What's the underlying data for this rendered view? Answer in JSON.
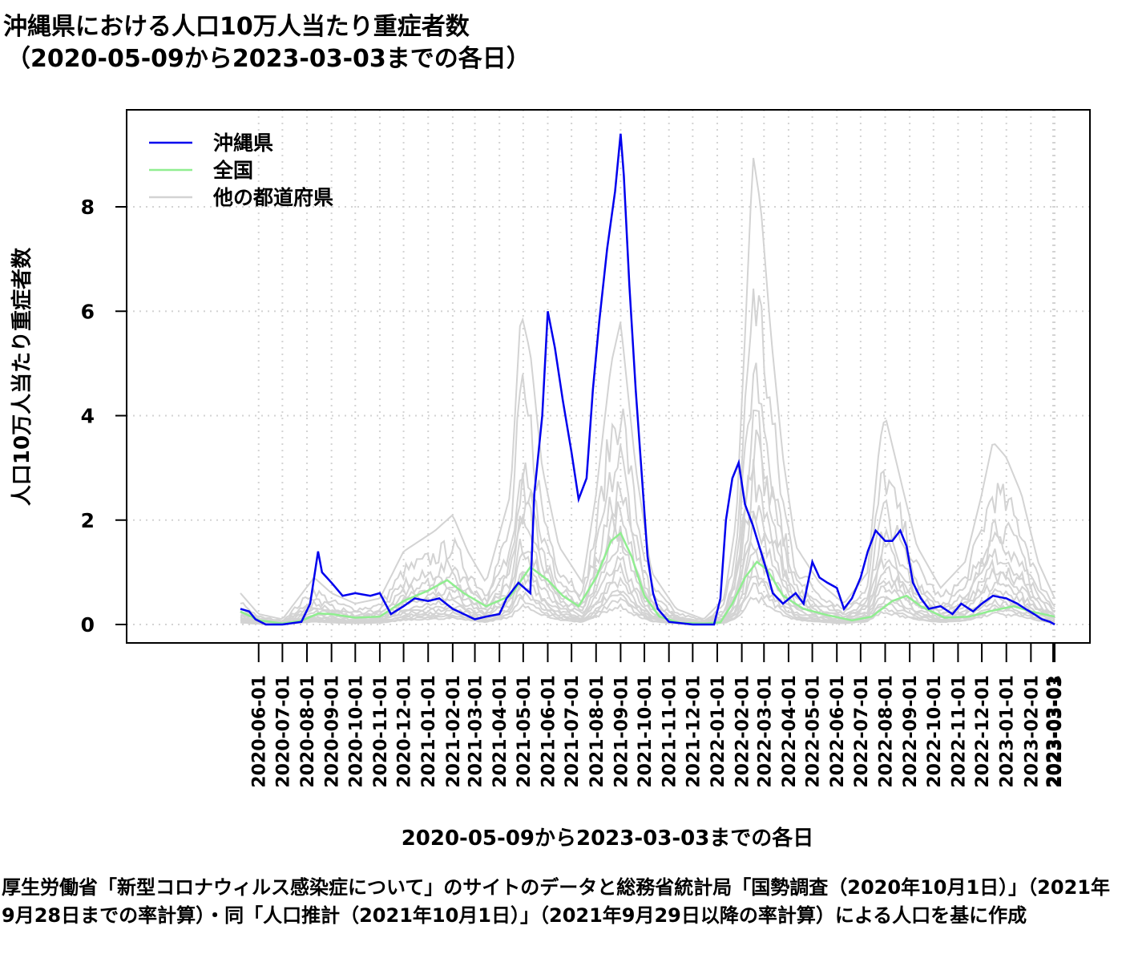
{
  "title": {
    "line1": "沖縄県における人口10万人当たり重症者数",
    "line2": "（2020-05-09から2023-03-03までの各日）"
  },
  "caption": "厚生労働省「新型コロナウィルス感染症について」のサイトのデータと総務省統計局「国勢調査（2020年10月1日）」（2021年9月28日までの率計算）・同「人口推計（2021年10月1日）」（2021年9月29日以降の率計算）による人口を基に作成",
  "colors": {
    "okinawa": "#0000ee",
    "national": "#90ee90",
    "others": "#d3d3d3",
    "grid": "#d3d3d3",
    "axis": "#000000"
  },
  "chart_data": {
    "type": "line",
    "title": "沖縄県における人口10万人当たり重症者数（2020-05-09から2023-03-03までの各日）",
    "xlabel": "2020-05-09から2023-03-03までの各日",
    "ylabel": "人口10万人当たり重症者数",
    "x_range": [
      "2020-05-09",
      "2023-03-03"
    ],
    "ylim": [
      0,
      9.5
    ],
    "y_ticks": [
      0,
      2,
      4,
      6,
      8
    ],
    "x_ticks": [
      "2020-06-01",
      "2020-07-01",
      "2020-08-01",
      "2020-09-01",
      "2020-10-01",
      "2020-11-01",
      "2020-12-01",
      "2021-01-01",
      "2021-02-01",
      "2021-03-01",
      "2021-04-01",
      "2021-05-01",
      "2021-06-01",
      "2021-07-01",
      "2021-08-01",
      "2021-09-01",
      "2021-10-01",
      "2021-11-01",
      "2021-12-01",
      "2022-01-01",
      "2022-02-01",
      "2022-03-01",
      "2022-04-01",
      "2022-05-01",
      "2022-06-01",
      "2022-07-01",
      "2022-08-01",
      "2022-09-01",
      "2022-10-01",
      "2022-11-01",
      "2022-12-01",
      "2023-01-01",
      "2023-02-01",
      "2023-03-01",
      "2023-03-03"
    ],
    "grid": "dotted",
    "legend_position": "top-left",
    "legend": [
      "沖縄県",
      "全国",
      "他の都道府県"
    ],
    "series": [
      {
        "name": "沖縄県",
        "color": "#0000ee",
        "points": [
          [
            "2020-05-09",
            0.3
          ],
          [
            "2020-05-20",
            0.25
          ],
          [
            "2020-05-28",
            0.1
          ],
          [
            "2020-06-10",
            0.0
          ],
          [
            "2020-07-01",
            0.0
          ],
          [
            "2020-07-25",
            0.05
          ],
          [
            "2020-08-05",
            0.4
          ],
          [
            "2020-08-15",
            1.4
          ],
          [
            "2020-08-20",
            1.0
          ],
          [
            "2020-09-01",
            0.8
          ],
          [
            "2020-09-15",
            0.55
          ],
          [
            "2020-10-01",
            0.6
          ],
          [
            "2020-10-20",
            0.55
          ],
          [
            "2020-11-01",
            0.6
          ],
          [
            "2020-11-15",
            0.2
          ],
          [
            "2020-12-01",
            0.35
          ],
          [
            "2020-12-15",
            0.5
          ],
          [
            "2021-01-01",
            0.45
          ],
          [
            "2021-01-15",
            0.5
          ],
          [
            "2021-02-01",
            0.3
          ],
          [
            "2021-02-15",
            0.2
          ],
          [
            "2021-03-01",
            0.1
          ],
          [
            "2021-03-15",
            0.15
          ],
          [
            "2021-04-01",
            0.2
          ],
          [
            "2021-04-10",
            0.5
          ],
          [
            "2021-04-25",
            0.8
          ],
          [
            "2021-05-10",
            0.6
          ],
          [
            "2021-05-15",
            2.5
          ],
          [
            "2021-05-25",
            4.0
          ],
          [
            "2021-06-01",
            6.0
          ],
          [
            "2021-06-10",
            5.3
          ],
          [
            "2021-06-20",
            4.3
          ],
          [
            "2021-07-01",
            3.3
          ],
          [
            "2021-07-10",
            2.4
          ],
          [
            "2021-07-20",
            2.8
          ],
          [
            "2021-07-28",
            4.5
          ],
          [
            "2021-08-05",
            5.8
          ],
          [
            "2021-08-15",
            7.2
          ],
          [
            "2021-08-25",
            8.3
          ],
          [
            "2021-09-01",
            9.4
          ],
          [
            "2021-09-05",
            8.6
          ],
          [
            "2021-09-12",
            6.5
          ],
          [
            "2021-09-20",
            4.5
          ],
          [
            "2021-09-28",
            2.8
          ],
          [
            "2021-10-05",
            1.3
          ],
          [
            "2021-10-12",
            0.6
          ],
          [
            "2021-10-18",
            0.3
          ],
          [
            "2021-11-01",
            0.05
          ],
          [
            "2021-12-01",
            0.0
          ],
          [
            "2021-12-28",
            0.0
          ],
          [
            "2022-01-05",
            0.5
          ],
          [
            "2022-01-12",
            2.0
          ],
          [
            "2022-01-20",
            2.8
          ],
          [
            "2022-01-28",
            3.1
          ],
          [
            "2022-02-05",
            2.3
          ],
          [
            "2022-02-15",
            1.9
          ],
          [
            "2022-02-25",
            1.4
          ],
          [
            "2022-03-05",
            1.0
          ],
          [
            "2022-03-12",
            0.6
          ],
          [
            "2022-03-25",
            0.4
          ],
          [
            "2022-04-10",
            0.6
          ],
          [
            "2022-04-20",
            0.4
          ],
          [
            "2022-05-01",
            1.2
          ],
          [
            "2022-05-10",
            0.9
          ],
          [
            "2022-05-20",
            0.8
          ],
          [
            "2022-06-01",
            0.7
          ],
          [
            "2022-06-10",
            0.3
          ],
          [
            "2022-06-20",
            0.5
          ],
          [
            "2022-07-01",
            0.9
          ],
          [
            "2022-07-10",
            1.4
          ],
          [
            "2022-07-20",
            1.8
          ],
          [
            "2022-08-01",
            1.6
          ],
          [
            "2022-08-10",
            1.6
          ],
          [
            "2022-08-20",
            1.8
          ],
          [
            "2022-08-28",
            1.5
          ],
          [
            "2022-09-05",
            0.8
          ],
          [
            "2022-09-15",
            0.5
          ],
          [
            "2022-09-25",
            0.3
          ],
          [
            "2022-10-10",
            0.35
          ],
          [
            "2022-10-25",
            0.2
          ],
          [
            "2022-11-05",
            0.4
          ],
          [
            "2022-11-20",
            0.25
          ],
          [
            "2022-12-01",
            0.4
          ],
          [
            "2022-12-15",
            0.55
          ],
          [
            "2023-01-01",
            0.5
          ],
          [
            "2023-01-15",
            0.4
          ],
          [
            "2023-01-25",
            0.3
          ],
          [
            "2023-02-05",
            0.2
          ],
          [
            "2023-02-15",
            0.1
          ],
          [
            "2023-02-25",
            0.05
          ],
          [
            "2023-03-03",
            0.0
          ]
        ]
      },
      {
        "name": "全国",
        "color": "#90ee90",
        "points": [
          [
            "2020-05-09",
            0.25
          ],
          [
            "2020-06-01",
            0.08
          ],
          [
            "2020-07-01",
            0.02
          ],
          [
            "2020-07-25",
            0.07
          ],
          [
            "2020-08-15",
            0.21
          ],
          [
            "2020-09-01",
            0.2
          ],
          [
            "2020-10-01",
            0.13
          ],
          [
            "2020-11-01",
            0.15
          ],
          [
            "2020-12-01",
            0.45
          ],
          [
            "2021-01-01",
            0.65
          ],
          [
            "2021-01-25",
            0.85
          ],
          [
            "2021-02-15",
            0.6
          ],
          [
            "2021-03-15",
            0.35
          ],
          [
            "2021-04-15",
            0.55
          ],
          [
            "2021-05-10",
            1.1
          ],
          [
            "2021-06-01",
            0.85
          ],
          [
            "2021-06-20",
            0.55
          ],
          [
            "2021-07-10",
            0.35
          ],
          [
            "2021-08-01",
            0.9
          ],
          [
            "2021-08-20",
            1.6
          ],
          [
            "2021-09-01",
            1.75
          ],
          [
            "2021-09-15",
            1.3
          ],
          [
            "2021-10-01",
            0.55
          ],
          [
            "2021-10-20",
            0.15
          ],
          [
            "2021-11-15",
            0.03
          ],
          [
            "2021-12-15",
            0.02
          ],
          [
            "2022-01-05",
            0.04
          ],
          [
            "2022-01-20",
            0.4
          ],
          [
            "2022-02-05",
            0.9
          ],
          [
            "2022-02-20",
            1.2
          ],
          [
            "2022-03-05",
            1.05
          ],
          [
            "2022-03-25",
            0.55
          ],
          [
            "2022-04-20",
            0.3
          ],
          [
            "2022-05-20",
            0.18
          ],
          [
            "2022-06-20",
            0.08
          ],
          [
            "2022-07-15",
            0.15
          ],
          [
            "2022-08-10",
            0.45
          ],
          [
            "2022-08-28",
            0.55
          ],
          [
            "2022-09-15",
            0.35
          ],
          [
            "2022-10-15",
            0.13
          ],
          [
            "2022-11-15",
            0.15
          ],
          [
            "2022-12-10",
            0.25
          ],
          [
            "2023-01-10",
            0.35
          ],
          [
            "2023-02-01",
            0.25
          ],
          [
            "2023-03-03",
            0.15
          ]
        ]
      },
      {
        "name": "他の都道府県",
        "color": "#d3d3d3",
        "points": [
          [
            "2020-05-09",
            0.6
          ],
          [
            "2020-06-01",
            0.2
          ],
          [
            "2020-07-01",
            0.1
          ],
          [
            "2020-08-10",
            0.9
          ],
          [
            "2020-09-01",
            0.6
          ],
          [
            "2020-10-01",
            0.4
          ],
          [
            "2020-11-01",
            0.5
          ],
          [
            "2020-12-01",
            1.4
          ],
          [
            "2021-01-10",
            1.8
          ],
          [
            "2021-02-01",
            2.1
          ],
          [
            "2021-02-20",
            1.4
          ],
          [
            "2021-03-15",
            0.8
          ],
          [
            "2021-04-15",
            2.5
          ],
          [
            "2021-04-28",
            6.0
          ],
          [
            "2021-05-10",
            5.2
          ],
          [
            "2021-05-25",
            3.0
          ],
          [
            "2021-06-15",
            1.5
          ],
          [
            "2021-07-15",
            0.8
          ],
          [
            "2021-08-01",
            2.5
          ],
          [
            "2021-08-20",
            5.0
          ],
          [
            "2021-09-01",
            5.8
          ],
          [
            "2021-09-20",
            3.0
          ],
          [
            "2021-10-10",
            1.0
          ],
          [
            "2021-11-10",
            0.3
          ],
          [
            "2021-12-15",
            0.1
          ],
          [
            "2022-01-10",
            0.5
          ],
          [
            "2022-01-25",
            2.0
          ],
          [
            "2022-02-05",
            5.5
          ],
          [
            "2022-02-15",
            9.0
          ],
          [
            "2022-02-25",
            8.0
          ],
          [
            "2022-03-10",
            5.5
          ],
          [
            "2022-03-25",
            3.2
          ],
          [
            "2022-04-10",
            1.5
          ],
          [
            "2022-05-10",
            0.8
          ],
          [
            "2022-06-10",
            0.4
          ],
          [
            "2022-07-10",
            1.0
          ],
          [
            "2022-07-25",
            3.5
          ],
          [
            "2022-08-01",
            4.0
          ],
          [
            "2022-08-20",
            2.8
          ],
          [
            "2022-09-10",
            1.5
          ],
          [
            "2022-10-10",
            0.7
          ],
          [
            "2022-11-10",
            1.2
          ],
          [
            "2022-12-01",
            2.5
          ],
          [
            "2022-12-15",
            3.5
          ],
          [
            "2023-01-01",
            3.2
          ],
          [
            "2023-01-20",
            2.5
          ],
          [
            "2023-02-10",
            1.2
          ],
          [
            "2023-03-03",
            0.5
          ]
        ]
      }
    ]
  }
}
